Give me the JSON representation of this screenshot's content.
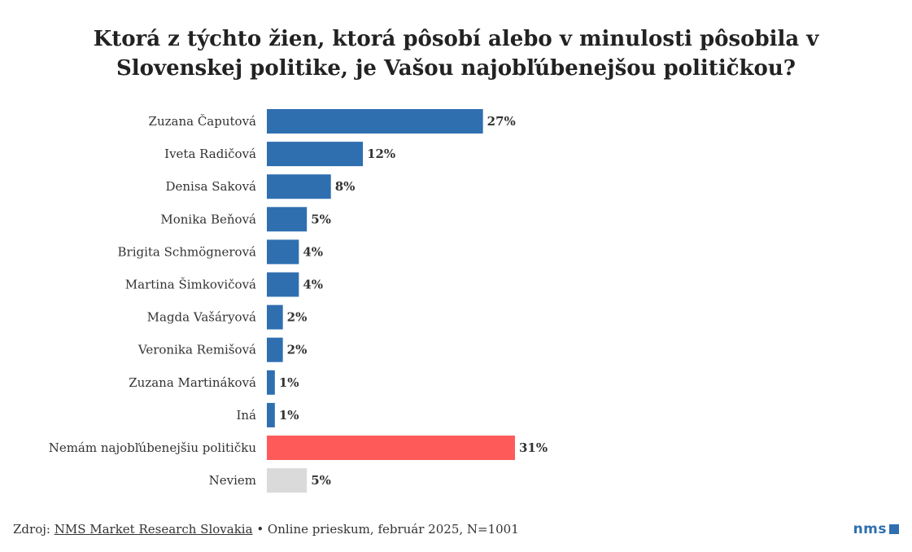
{
  "chart_data": {
    "type": "bar",
    "orientation": "horizontal",
    "title": "Ktorá z týchto žien, ktorá pôsobí alebo v minulosti pôsobila v Slovenskej politike, je Vašou najobľúbenejšou političkou?",
    "categories": [
      "Zuzana Čaputová",
      "Iveta Radičová",
      "Denisa Saková",
      "Monika Beňová",
      "Brigita Schmögnerová",
      "Martina Šimkovičová",
      "Magda Vašáryová",
      "Veronika Remišová",
      "Zuzana Martináková",
      "Iná",
      "Nemám najobľúbenejšiu političku",
      "Neviem"
    ],
    "values": [
      27,
      12,
      8,
      5,
      4,
      4,
      2,
      2,
      1,
      1,
      31,
      5
    ],
    "value_labels": [
      "27%",
      "12%",
      "8%",
      "5%",
      "4%",
      "4%",
      "2%",
      "2%",
      "1%",
      "1%",
      "31%",
      "5%"
    ],
    "unit": "%",
    "xlim": [
      0,
      31
    ],
    "grid": false,
    "legend": "none",
    "colors": {
      "default": "#2f6fb0",
      "highlight": "#ff5a5a",
      "neutral": "#dadada"
    },
    "bar_colors": [
      "default",
      "default",
      "default",
      "default",
      "default",
      "default",
      "default",
      "default",
      "default",
      "default",
      "highlight",
      "neutral"
    ]
  },
  "footer": {
    "source_prefix": "Zdroj:",
    "source_name": "NMS Market Research Slovakia",
    "details": "• Online prieskum, február 2025, N=1001"
  },
  "logo": {
    "text": "nms",
    "color": "#2f6fb0"
  }
}
